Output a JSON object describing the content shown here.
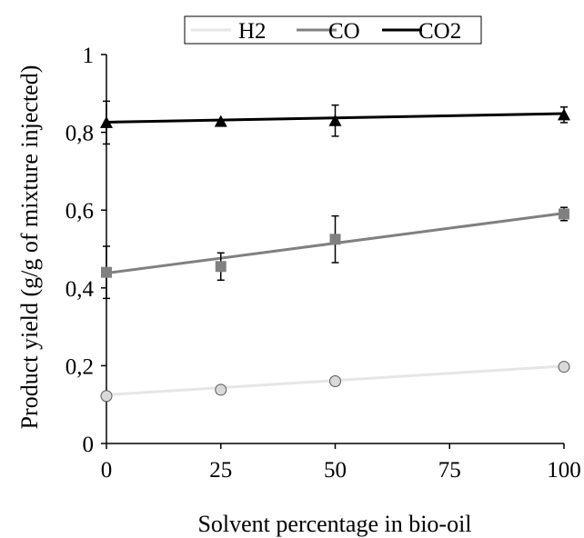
{
  "chart_data": {
    "type": "scatter",
    "title": "",
    "xlabel": "Solvent percentage in bio-oil",
    "ylabel": "Product  yield (g/g of mixture injected)",
    "xlim": [
      0,
      100
    ],
    "ylim": [
      0,
      1
    ],
    "x_ticks": [
      "0",
      "25",
      "50",
      "75",
      "100"
    ],
    "y_ticks": [
      "0",
      "0,2",
      "0,4",
      "0,6",
      "0,8",
      "1"
    ],
    "grid": false,
    "legend_position": "top",
    "series": [
      {
        "name": "H2",
        "color": "#e6e6e6",
        "marker": "circle",
        "x": [
          0,
          25,
          50,
          100
        ],
        "y": [
          0.122,
          0.138,
          0.16,
          0.197
        ],
        "error": [
          0,
          0,
          0,
          0
        ],
        "trend": [
          0.125,
          0.199
        ]
      },
      {
        "name": "CO",
        "color": "#808080",
        "marker": "square",
        "x": [
          0,
          25,
          50,
          100
        ],
        "y": [
          0.44,
          0.455,
          0.525,
          0.59
        ],
        "error": [
          0.067,
          0.035,
          0.06,
          0.017
        ],
        "trend": [
          0.438,
          0.592
        ]
      },
      {
        "name": "CO2",
        "color": "#000000",
        "marker": "triangle",
        "x": [
          0,
          25,
          50,
          100
        ],
        "y": [
          0.825,
          0.828,
          0.83,
          0.845
        ],
        "error": [
          0.055,
          0,
          0.04,
          0.02
        ],
        "trend": [
          0.826,
          0.848
        ]
      }
    ]
  }
}
